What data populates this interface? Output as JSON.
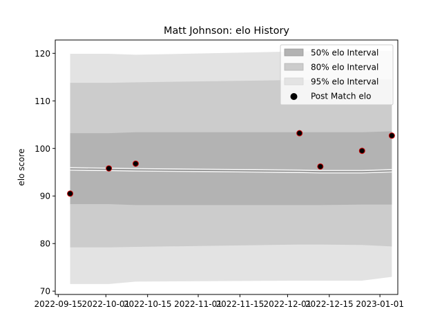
{
  "chart_data": {
    "type": "area",
    "title": "Matt Johnson: elo History",
    "xlabel": "",
    "ylabel": "elo score",
    "x_ticks": [
      "2022-09-15",
      "2022-10-01",
      "2022-10-15",
      "2022-11-01",
      "2022-11-15",
      "2022-12-01",
      "2022-12-15",
      "2023-01-01"
    ],
    "y_ticks": [
      70,
      80,
      90,
      100,
      110,
      120
    ],
    "xlim": [
      "2022-09-14",
      "2023-01-07"
    ],
    "ylim": [
      69.3,
      122.8
    ],
    "grid": false,
    "legend_position": "top-right",
    "dates": [
      "2022-09-19",
      "2022-10-02",
      "2022-10-11",
      "2022-12-05",
      "2022-12-12",
      "2022-12-26",
      "2023-01-05"
    ],
    "mean": [
      95.7,
      95.6,
      95.5,
      95.2,
      95.1,
      95.1,
      95.3
    ],
    "interval_50": {
      "name": "50% elo Interval",
      "lower": [
        88.3,
        88.3,
        88.1,
        88.1,
        88.1,
        88.2,
        88.2
      ],
      "upper": [
        103.2,
        103.2,
        103.4,
        103.4,
        103.4,
        103.4,
        103.6
      ]
    },
    "interval_80": {
      "name": "80% elo Interval",
      "lower": [
        79.2,
        79.2,
        79.3,
        79.8,
        79.8,
        79.7,
        79.4
      ],
      "upper": [
        113.8,
        113.8,
        113.9,
        114.4,
        114.4,
        114.5,
        114.5
      ]
    },
    "interval_95": {
      "name": "95% elo Interval",
      "lower": [
        71.5,
        71.5,
        72.0,
        72.2,
        72.2,
        72.2,
        73.0
      ],
      "upper": [
        119.9,
        119.9,
        119.7,
        120.4,
        120.5,
        120.5,
        120.5
      ]
    },
    "post_match": {
      "name": "Post Match elo",
      "values": [
        90.5,
        95.8,
        96.8,
        103.2,
        96.2,
        99.5,
        102.7
      ]
    },
    "colors": {
      "band_50": "#b3b3b3",
      "band_80": "#cccccc",
      "band_95": "#e3e3e3",
      "mean_line": "#888888",
      "marker_fill": "#000000",
      "marker_edge": "#cc0000"
    }
  }
}
